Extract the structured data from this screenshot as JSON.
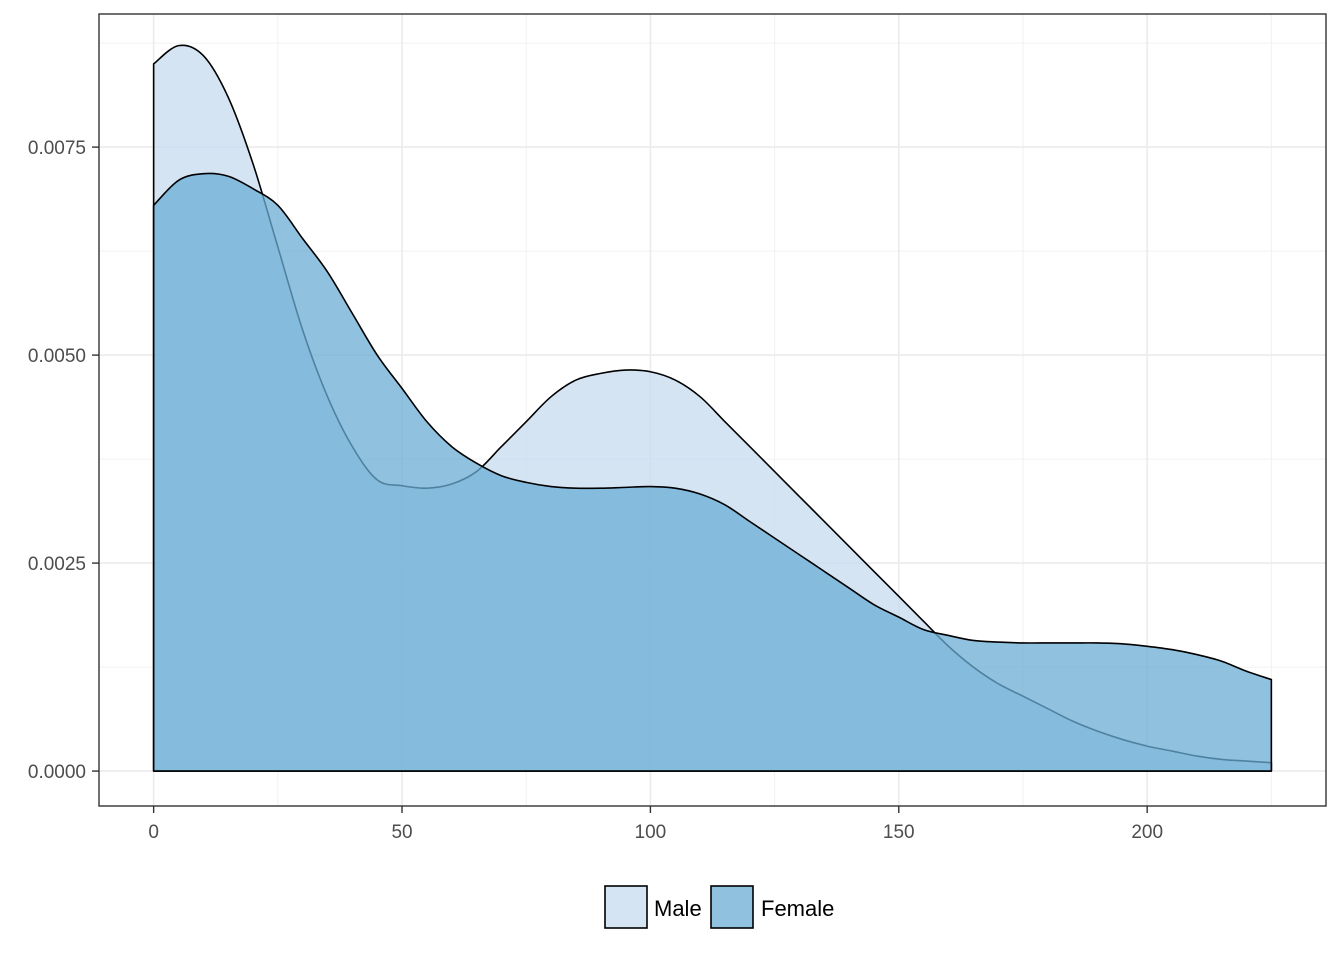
{
  "chart_data": {
    "type": "area",
    "title": "",
    "xlabel": "",
    "ylabel": "",
    "xlim": [
      -11,
      236
    ],
    "ylim": [
      -0.00042,
      0.0091
    ],
    "grid": true,
    "legend_position": "bottom",
    "x_ticks": [
      0,
      50,
      100,
      150,
      200
    ],
    "x_tick_labels": [
      "0",
      "50",
      "100",
      "150",
      "200"
    ],
    "y_ticks": [
      0,
      0.0025,
      0.005,
      0.0075
    ],
    "y_tick_labels": [
      "0.0000",
      "0.0025",
      "0.0050",
      "0.0075"
    ],
    "series": [
      {
        "name": "Male",
        "color": "#c6dbef",
        "x": [
          0,
          5,
          10,
          15,
          20,
          25,
          30,
          35,
          40,
          45,
          50,
          55,
          60,
          65,
          70,
          75,
          80,
          85,
          90,
          95,
          100,
          105,
          110,
          115,
          120,
          125,
          130,
          135,
          140,
          145,
          150,
          155,
          160,
          165,
          170,
          175,
          180,
          185,
          190,
          195,
          200,
          205,
          210,
          215,
          220,
          225
        ],
        "values": [
          0.0085,
          0.00872,
          0.0086,
          0.0081,
          0.0073,
          0.0063,
          0.0053,
          0.0045,
          0.0039,
          0.0035,
          0.00343,
          0.0034,
          0.00345,
          0.0036,
          0.0039,
          0.0042,
          0.0045,
          0.0047,
          0.00478,
          0.00482,
          0.0048,
          0.0047,
          0.0045,
          0.0042,
          0.0039,
          0.0036,
          0.0033,
          0.003,
          0.0027,
          0.0024,
          0.0021,
          0.0018,
          0.0015,
          0.00125,
          0.00105,
          0.0009,
          0.00075,
          0.0006,
          0.00048,
          0.00038,
          0.0003,
          0.00024,
          0.00018,
          0.00014,
          0.00012,
          0.0001
        ]
      },
      {
        "name": "Female",
        "color": "#6baed6",
        "x": [
          0,
          5,
          10,
          15,
          20,
          25,
          30,
          35,
          40,
          45,
          50,
          55,
          60,
          65,
          70,
          75,
          80,
          85,
          90,
          95,
          100,
          105,
          110,
          115,
          120,
          125,
          130,
          135,
          140,
          145,
          150,
          155,
          160,
          165,
          170,
          175,
          180,
          185,
          190,
          195,
          200,
          205,
          210,
          215,
          220,
          225
        ],
        "values": [
          0.0068,
          0.0071,
          0.00718,
          0.00715,
          0.007,
          0.0068,
          0.0064,
          0.006,
          0.0055,
          0.005,
          0.0046,
          0.0042,
          0.0039,
          0.0037,
          0.00355,
          0.00347,
          0.00342,
          0.0034,
          0.0034,
          0.00341,
          0.00342,
          0.0034,
          0.00333,
          0.0032,
          0.003,
          0.0028,
          0.0026,
          0.0024,
          0.0022,
          0.002,
          0.00185,
          0.0017,
          0.00163,
          0.00157,
          0.00155,
          0.00154,
          0.00154,
          0.00154,
          0.00154,
          0.00153,
          0.0015,
          0.00146,
          0.0014,
          0.00132,
          0.0012,
          0.0011
        ]
      }
    ]
  }
}
